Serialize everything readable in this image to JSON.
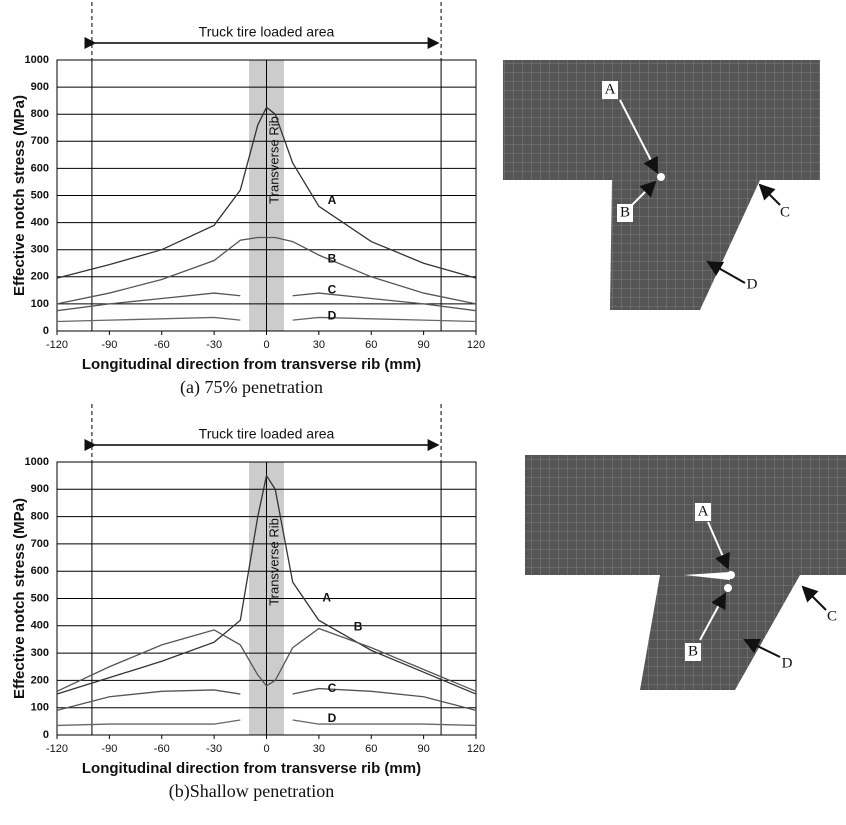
{
  "chart_data": [
    {
      "type": "line",
      "annotation": "Truck tire loaded area",
      "rib_label": "Transverse Rib",
      "xlabel": "Longitudinal direction from transverse rib (mm)",
      "ylabel": "Effective notch stress (MPa)",
      "caption": "(a) 75% penetration",
      "x": [
        -120,
        -90,
        -60,
        -30,
        -15,
        -5,
        0,
        5,
        15,
        30,
        60,
        90,
        120
      ],
      "series": [
        {
          "name": "A",
          "color": "#333333",
          "values": [
            195,
            245,
            300,
            390,
            520,
            760,
            825,
            800,
            620,
            460,
            330,
            250,
            195
          ]
        },
        {
          "name": "B",
          "color": "#555555",
          "values": [
            100,
            140,
            190,
            260,
            335,
            345,
            345,
            345,
            330,
            280,
            200,
            140,
            100
          ]
        },
        {
          "name": "C",
          "color": "#555555",
          "values": [
            75,
            100,
            120,
            140,
            130,
            null,
            null,
            null,
            130,
            140,
            120,
            100,
            75
          ]
        },
        {
          "name": "D",
          "color": "#666666",
          "values": [
            35,
            40,
            45,
            50,
            40,
            null,
            null,
            null,
            40,
            50,
            45,
            40,
            35
          ]
        }
      ],
      "xlim": [
        -120,
        120
      ],
      "xticks": [
        -120,
        -90,
        -60,
        -30,
        0,
        30,
        60,
        90,
        120
      ],
      "ylim": [
        0,
        1000
      ],
      "yticks": [
        0,
        100,
        200,
        300,
        400,
        500,
        600,
        700,
        800,
        900,
        1000
      ],
      "grid": true
    },
    {
      "type": "line",
      "annotation": "Truck tire loaded area",
      "rib_label": "Transverse Rib",
      "xlabel": "Longitudinal direction from transverse rib (mm)",
      "ylabel": "Effective notch stress (MPa)",
      "caption": "(b)Shallow penetration",
      "x": [
        -120,
        -90,
        -60,
        -30,
        -15,
        -5,
        0,
        5,
        15,
        30,
        60,
        90,
        120
      ],
      "series": [
        {
          "name": "A",
          "color": "#333333",
          "values": [
            150,
            210,
            270,
            340,
            420,
            800,
            950,
            900,
            560,
            420,
            310,
            230,
            150
          ]
        },
        {
          "name": "B",
          "color": "#555555",
          "values": [
            160,
            250,
            330,
            385,
            330,
            220,
            180,
            200,
            320,
            390,
            320,
            240,
            160
          ]
        },
        {
          "name": "C",
          "color": "#555555",
          "values": [
            90,
            140,
            160,
            165,
            150,
            null,
            null,
            null,
            150,
            170,
            160,
            140,
            90
          ]
        },
        {
          "name": "D",
          "color": "#666666",
          "values": [
            35,
            40,
            40,
            40,
            55,
            null,
            null,
            null,
            55,
            40,
            40,
            40,
            35
          ]
        }
      ],
      "xlim": [
        -120,
        120
      ],
      "xticks": [
        -120,
        -90,
        -60,
        -30,
        0,
        30,
        60,
        90,
        120
      ],
      "ylim": [
        0,
        1000
      ],
      "yticks": [
        0,
        100,
        200,
        300,
        400,
        500,
        600,
        700,
        800,
        900,
        1000
      ],
      "grid": true
    }
  ],
  "figures": [
    {
      "labels": [
        "A",
        "B",
        "C",
        "D"
      ]
    },
    {
      "labels": [
        "A",
        "B",
        "C",
        "D"
      ]
    }
  ]
}
